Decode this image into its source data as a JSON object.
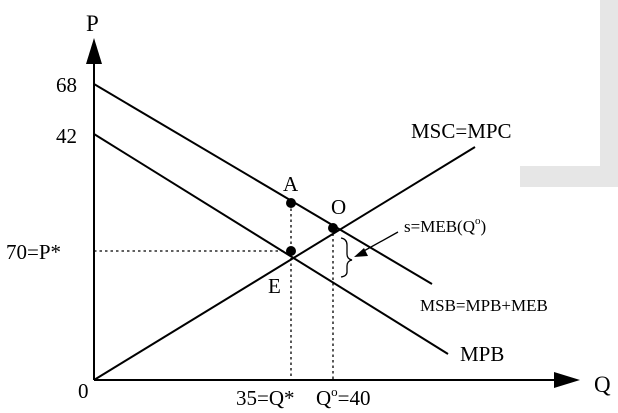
{
  "axes": {
    "y_label": "P",
    "x_label": "Q",
    "origin_label": "0",
    "y_ticks": {
      "t68": "68",
      "t42": "42",
      "p_star": "70=P*"
    },
    "x_ticks": {
      "q_star": "35=Q*",
      "q_o": "Q",
      "q_o_sup": "o",
      "q_o_suffix": "=40"
    }
  },
  "curves": {
    "msc": "MSC=MPC",
    "msb": "MSB=MPB+MEB",
    "mpb": "MPB"
  },
  "points": {
    "a": "A",
    "o": "O",
    "e": "E"
  },
  "annotation": {
    "prefix": "s=MEB(Q",
    "sup": "o",
    "suffix": ")"
  },
  "colors": {
    "ink": "#000000",
    "panel": "#e6e6e6"
  }
}
